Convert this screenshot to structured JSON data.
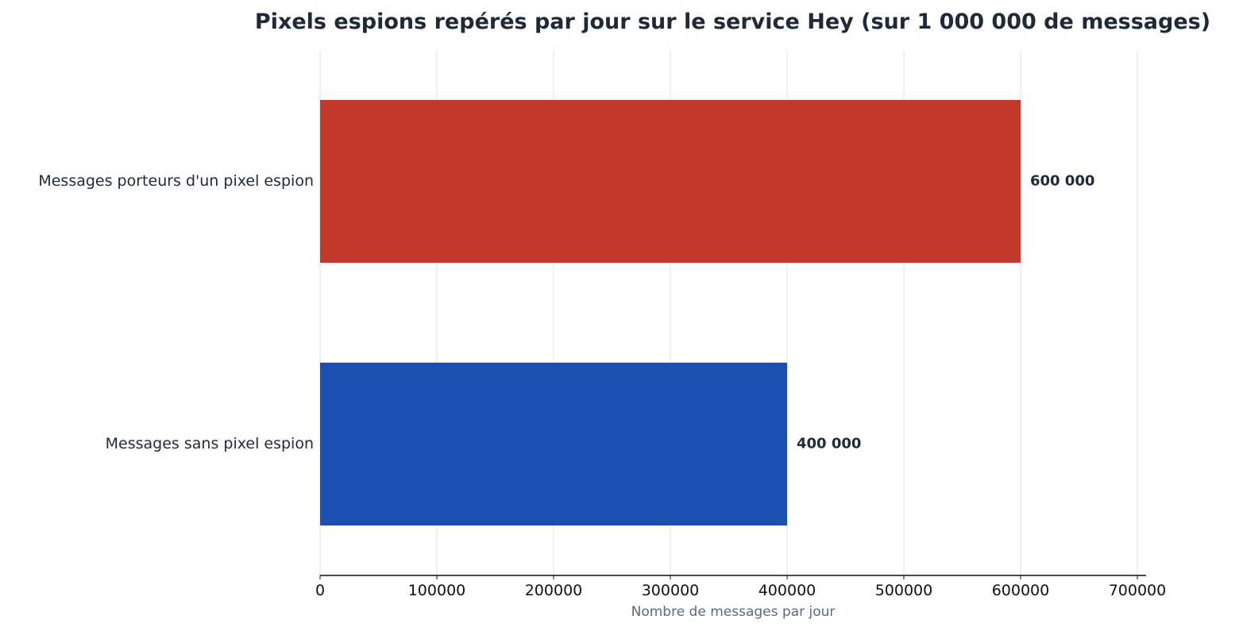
{
  "chart_data": {
    "type": "bar",
    "orientation": "horizontal",
    "title": "Pixels espions repérés par jour sur le service Hey (sur 1 000 000 de messages)",
    "xlabel": "Nombre de messages par jour",
    "ylabel": "",
    "xlim": [
      0,
      707500
    ],
    "xticks": [
      0,
      100000,
      200000,
      300000,
      400000,
      500000,
      600000,
      700000
    ],
    "xtick_labels": [
      "0",
      "100000",
      "200000",
      "300000",
      "400000",
      "500000",
      "600000",
      "700000"
    ],
    "grid": "vertical",
    "legend": "none",
    "categories": [
      "Messages porteurs d'un pixel espion",
      "Messages sans pixel espion"
    ],
    "values": [
      600000,
      400000
    ],
    "data_labels": [
      "600 000",
      "400 000"
    ],
    "colors": [
      "#c0392b",
      "#1c4fb2"
    ]
  },
  "style": {
    "title_color": "#1f2937",
    "text_color": "#1f2937",
    "axis_label_color": "#5b6b7d",
    "grid_color": "#e5e7eb",
    "axis_color": "#111111"
  }
}
